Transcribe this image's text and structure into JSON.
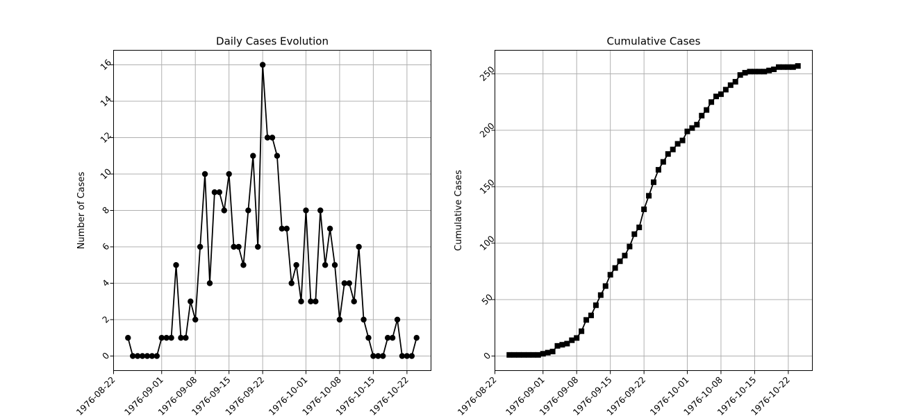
{
  "chart_data": [
    {
      "type": "line",
      "title": "Daily Cases Evolution",
      "xlabel": "",
      "ylabel": "Number of Cases",
      "marker": "circle",
      "color": "#000000",
      "grid": true,
      "x_start": "1976-08-25",
      "x_step_days": 1,
      "xlim": [
        "1976-08-22",
        "1976-10-27"
      ],
      "ylim": [
        -0.8,
        16.8
      ],
      "xticks": [
        "1976-08-22",
        "1976-09-01",
        "1976-09-08",
        "1976-09-15",
        "1976-09-22",
        "1976-10-01",
        "1976-10-08",
        "1976-10-15",
        "1976-10-22"
      ],
      "yticks": [
        0,
        2,
        4,
        6,
        8,
        10,
        12,
        14,
        16
      ],
      "values": [
        1,
        0,
        0,
        0,
        0,
        0,
        0,
        1,
        1,
        1,
        5,
        1,
        1,
        3,
        2,
        6,
        10,
        4,
        9,
        9,
        8,
        10,
        6,
        6,
        5,
        8,
        11,
        6,
        16,
        12,
        12,
        11,
        7,
        7,
        4,
        5,
        3,
        8,
        3,
        3,
        8,
        5,
        7,
        5,
        2,
        4,
        4,
        3,
        6,
        2,
        1,
        0,
        0,
        0,
        1,
        1,
        2,
        0,
        0,
        0,
        1
      ]
    },
    {
      "type": "line",
      "title": "Cumulative Cases",
      "xlabel": "",
      "ylabel": "Cumulative Cases",
      "marker": "square",
      "color": "#000000",
      "grid": true,
      "x_start": "1976-08-25",
      "x_step_days": 1,
      "xlim": [
        "1976-08-22",
        "1976-10-27"
      ],
      "ylim": [
        -12.9,
        270.9
      ],
      "xticks": [
        "1976-08-22",
        "1976-09-01",
        "1976-09-08",
        "1976-09-15",
        "1976-09-22",
        "1976-10-01",
        "1976-10-08",
        "1976-10-15",
        "1976-10-22"
      ],
      "yticks": [
        0,
        50,
        100,
        150,
        200,
        250
      ],
      "values": [
        1,
        1,
        1,
        1,
        1,
        1,
        1,
        2,
        3,
        4,
        9,
        10,
        11,
        14,
        16,
        22,
        32,
        36,
        45,
        54,
        62,
        72,
        78,
        84,
        89,
        97,
        108,
        114,
        130,
        142,
        154,
        165,
        172,
        179,
        183,
        188,
        191,
        199,
        202,
        205,
        213,
        218,
        225,
        230,
        232,
        236,
        240,
        243,
        249,
        251,
        252,
        252,
        252,
        252,
        253,
        254,
        256,
        256,
        256,
        256,
        257
      ]
    }
  ]
}
